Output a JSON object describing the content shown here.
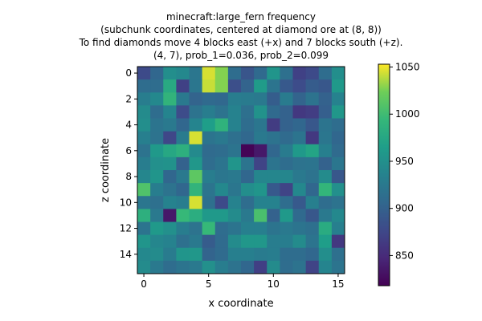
{
  "chart_data": {
    "type": "heatmap",
    "title_lines": [
      "minecraft:large_fern frequency",
      "(subchunk coordinates, centered at diamond ore at (8, 8))",
      "To find diamonds move 4 blocks east (+x) and 7 blocks south (+z).",
      "(4, 7), prob_1=0.036, prob_2=0.099"
    ],
    "xlabel": "x coordinate",
    "ylabel": "z coordinate",
    "x_ticks": [
      "0",
      "5",
      "10",
      "15"
    ],
    "y_ticks": [
      "0",
      "2",
      "4",
      "6",
      "8",
      "10",
      "12",
      "14"
    ],
    "colorbar_ticks": [
      "850",
      "900",
      "950",
      "1000",
      "1050"
    ],
    "vmin": 818,
    "vmax": 1053,
    "colormap": "viridis",
    "grid": false,
    "values": [
      [
        878,
        905,
        948,
        942,
        922,
        1045,
        1028,
        912,
        888,
        908,
        955,
        915,
        870,
        878,
        912,
        948
      ],
      [
        912,
        912,
        978,
        870,
        922,
        1042,
        1028,
        882,
        902,
        962,
        920,
        892,
        880,
        895,
        890,
        960
      ],
      [
        930,
        942,
        990,
        925,
        902,
        908,
        906,
        930,
        928,
        925,
        896,
        928,
        902,
        918,
        900,
        935
      ],
      [
        945,
        912,
        938,
        880,
        918,
        930,
        918,
        935,
        915,
        952,
        908,
        900,
        862,
        866,
        898,
        958
      ],
      [
        948,
        920,
        925,
        905,
        938,
        965,
        988,
        935,
        912,
        922,
        865,
        900,
        905,
        890,
        920,
        912
      ],
      [
        932,
        918,
        875,
        928,
        1045,
        920,
        925,
        915,
        906,
        925,
        918,
        910,
        920,
        862,
        922,
        905
      ],
      [
        918,
        960,
        975,
        985,
        944,
        910,
        912,
        920,
        820,
        835,
        905,
        928,
        960,
        972,
        932,
        910
      ],
      [
        930,
        950,
        952,
        900,
        958,
        912,
        920,
        955,
        920,
        872,
        920,
        912,
        918,
        920,
        900,
        922
      ],
      [
        940,
        955,
        905,
        925,
        1015,
        930,
        922,
        925,
        905,
        940,
        940,
        940,
        925,
        918,
        945,
        890
      ],
      [
        1008,
        930,
        918,
        905,
        990,
        920,
        942,
        922,
        948,
        955,
        892,
        872,
        942,
        905,
        992,
        950
      ],
      [
        922,
        915,
        935,
        930,
        1045,
        915,
        878,
        935,
        912,
        935,
        935,
        912,
        892,
        932,
        912,
        918
      ],
      [
        985,
        925,
        835,
        995,
        982,
        960,
        960,
        945,
        925,
        1005,
        900,
        960,
        908,
        890,
        925,
        942
      ],
      [
        920,
        960,
        950,
        930,
        918,
        995,
        912,
        920,
        932,
        932,
        920,
        925,
        920,
        915,
        980,
        932
      ],
      [
        955,
        940,
        935,
        915,
        925,
        895,
        910,
        945,
        958,
        958,
        930,
        930,
        945,
        920,
        965,
        862
      ],
      [
        942,
        945,
        928,
        955,
        958,
        902,
        910,
        932,
        932,
        928,
        930,
        912,
        912,
        905,
        948,
        915
      ],
      [
        945,
        925,
        912,
        920,
        925,
        950,
        930,
        918,
        905,
        868,
        945,
        912,
        918,
        872,
        938,
        920
      ]
    ]
  }
}
